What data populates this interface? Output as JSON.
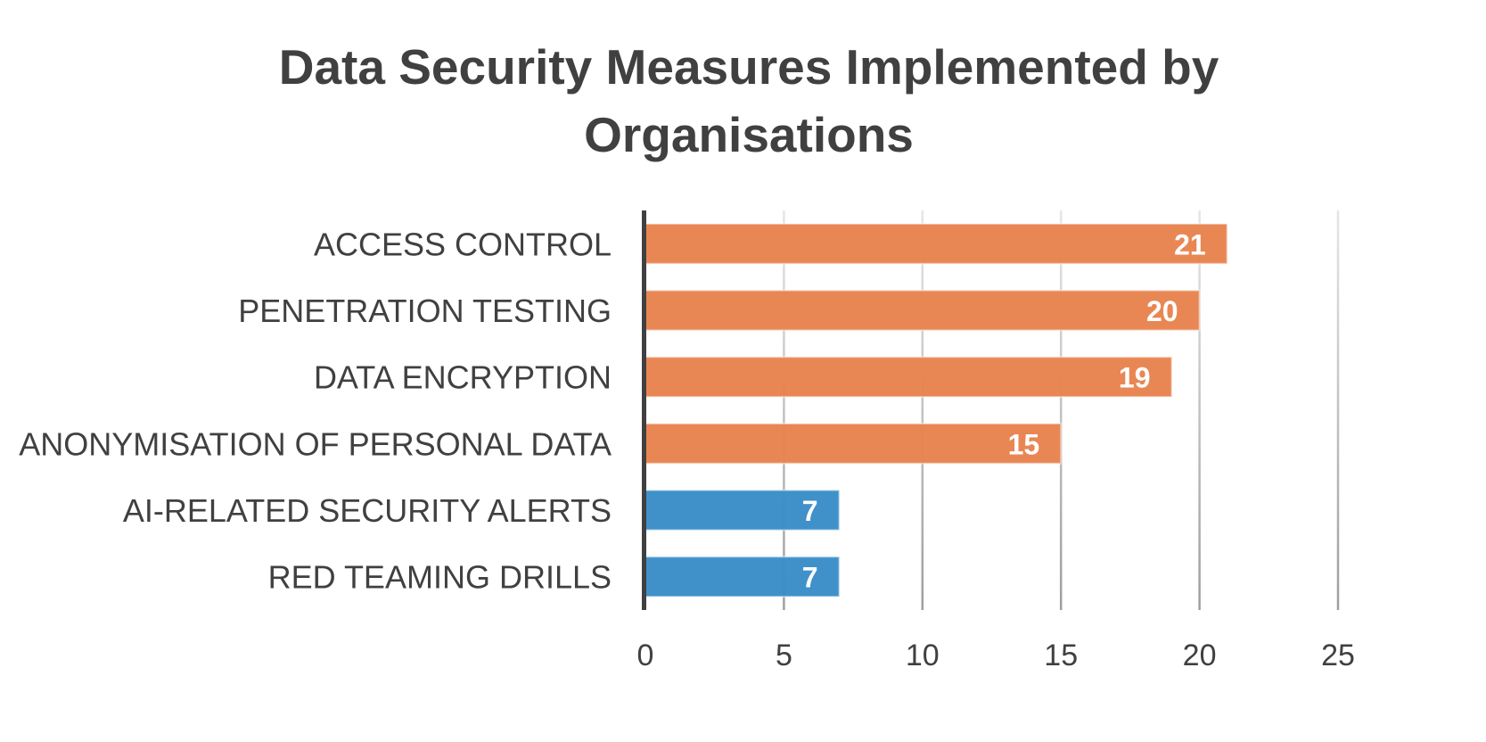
{
  "chart_data": {
    "type": "bar",
    "orientation": "horizontal",
    "title": "Data Security Measures Implemented by Organisations",
    "title_lines": [
      "Data Security Measures Implemented by",
      "Organisations"
    ],
    "xlabel": "",
    "ylabel": "",
    "categories": [
      "ACCESS CONTROL",
      "PENETRATION TESTING",
      "DATA ENCRYPTION",
      "ANONYMISATION OF PERSONAL DATA",
      "AI-RELATED SECURITY ALERTS",
      "RED TEAMING DRILLS"
    ],
    "values": [
      21,
      20,
      19,
      15,
      7,
      7
    ],
    "bar_colors": [
      "#E8834E",
      "#E8834E",
      "#E8834E",
      "#E8834E",
      "#3A8DC8",
      "#3A8DC8"
    ],
    "data_labels": [
      "21",
      "20",
      "19",
      "15",
      "7",
      "7"
    ],
    "xlim": [
      0,
      25
    ],
    "x_ticks": [
      0,
      5,
      10,
      15,
      20,
      25
    ],
    "x_tick_labels": [
      "0",
      "5",
      "10",
      "15",
      "20",
      "25"
    ],
    "grid": true,
    "legend": "none",
    "colors": {
      "text": "#404040",
      "axis": "#404040",
      "grid": "#b0b0b0",
      "data_label": "#ffffff"
    }
  }
}
